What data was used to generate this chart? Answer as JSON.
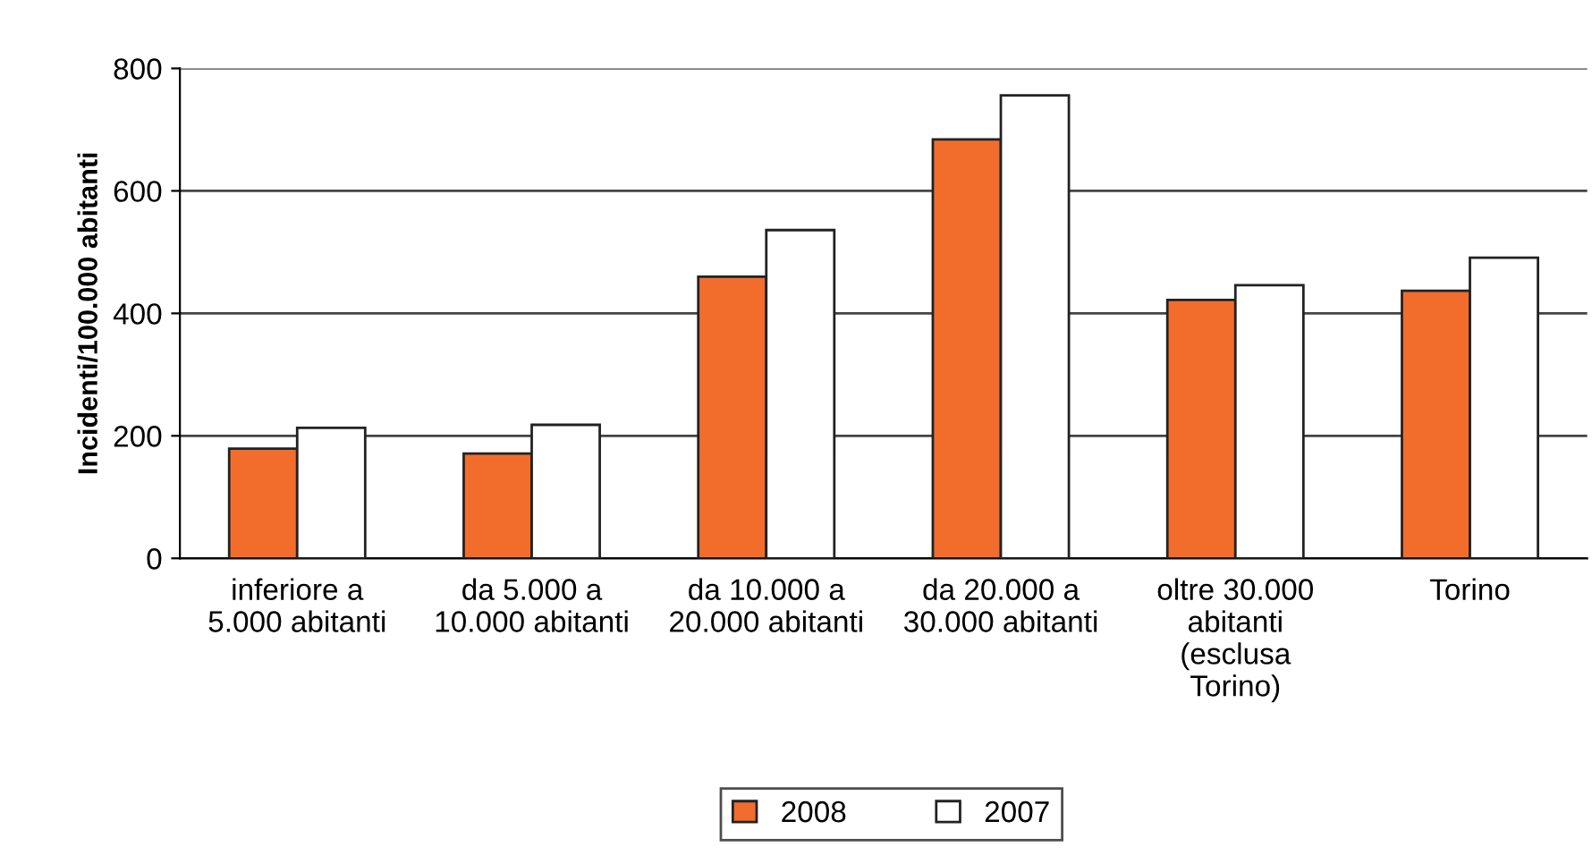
{
  "chart_data": {
    "type": "bar",
    "ylabel": "Incidenti/100.000 abitanti",
    "categories": [
      "inferiore a\n5.000 abitanti",
      "da 5.000 a\n10.000 abitanti",
      "da 10.000 a\n20.000 abitanti",
      "da 20.000 a\n30.000 abitanti",
      "oltre 30.000\nabitanti\n(esclusa\nTorino)",
      "Torino"
    ],
    "series": [
      {
        "name": "2008",
        "color": "#f26d2c",
        "values": [
          179,
          171,
          460,
          684,
          422,
          437
        ]
      },
      {
        "name": "2007",
        "color": "#ffffff",
        "values": [
          213,
          218,
          536,
          756,
          446,
          491
        ]
      }
    ],
    "ylim": [
      0,
      800
    ],
    "yticks": [
      0,
      200,
      400,
      600,
      800
    ],
    "grid": "y",
    "legend": "bottom"
  }
}
